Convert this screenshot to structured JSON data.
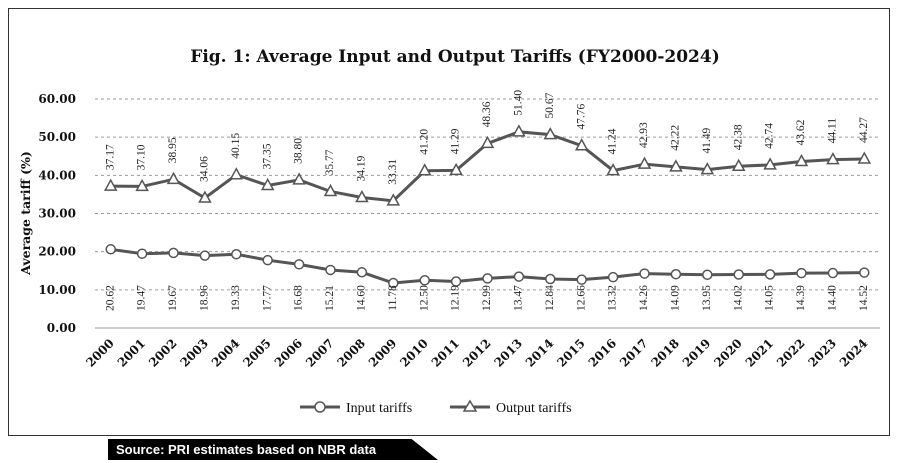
{
  "source_note": "Source: PRI estimates based on NBR data",
  "chart_data": {
    "type": "line",
    "title": "Fig. 1: Average Input and Output Tariffs (FY2000-2024)",
    "xlabel": "",
    "ylabel": "Average tariff  (%)",
    "ylim": [
      0,
      60
    ],
    "yticks": [
      "0.00",
      "10.00",
      "20.00",
      "30.00",
      "40.00",
      "50.00",
      "60.00"
    ],
    "grid": true,
    "legend_position": "bottom",
    "categories": [
      "2000",
      "2001",
      "2002",
      "2003",
      "2004",
      "2005",
      "2006",
      "2007",
      "2008",
      "2009",
      "2010",
      "2011",
      "2012",
      "2013",
      "2014",
      "2015",
      "2016",
      "2017",
      "2018",
      "2019",
      "2020",
      "2021",
      "2022",
      "2023",
      "2024"
    ],
    "series": [
      {
        "name": "Input tariffs",
        "marker": "circle",
        "color": "#555555",
        "values": [
          20.62,
          19.47,
          19.67,
          18.96,
          19.33,
          17.77,
          16.68,
          15.21,
          14.6,
          11.78,
          12.5,
          12.19,
          12.99,
          13.47,
          12.84,
          12.66,
          13.32,
          14.26,
          14.09,
          13.95,
          14.02,
          14.05,
          14.39,
          14.4,
          14.52
        ],
        "labels": [
          "20.62",
          "19.47",
          "19.67",
          "18.96",
          "19.33",
          "17.77",
          "16.68",
          "15.21",
          "14.60",
          "11.78",
          "12.50",
          "12.19",
          "12.99",
          "13.47",
          "12.84",
          "12.66",
          "13.32",
          "14.26",
          "14.09",
          "13.95",
          "14.02",
          "14.05",
          "14.39",
          "14.40",
          "14.52"
        ]
      },
      {
        "name": "Output tariffs",
        "marker": "triangle",
        "color": "#555555",
        "values": [
          37.17,
          37.1,
          38.95,
          34.06,
          40.15,
          37.35,
          38.8,
          35.77,
          34.19,
          33.31,
          41.2,
          41.29,
          48.36,
          51.4,
          50.67,
          47.76,
          41.24,
          42.93,
          42.22,
          41.49,
          42.38,
          42.74,
          43.62,
          44.11,
          44.27
        ],
        "labels": [
          "37.17",
          "37.10",
          "38.95",
          "34.06",
          "40.15",
          "37.35",
          "38.80",
          "35.77",
          "34.19",
          "33.31",
          "41.20",
          "41.29",
          "48.36",
          "51.40",
          "50.67",
          "47.76",
          "41.24",
          "42.93",
          "42.22",
          "41.49",
          "42.38",
          "42.74",
          "43.62",
          "44.11",
          "44.27"
        ]
      }
    ]
  }
}
